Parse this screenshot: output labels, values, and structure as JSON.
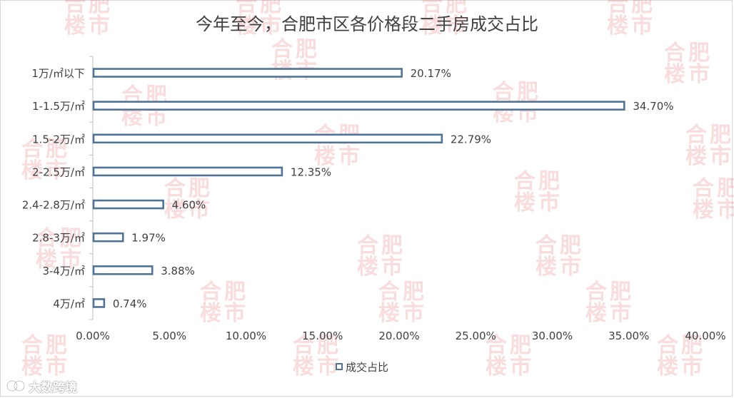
{
  "chart_data": {
    "type": "bar",
    "orientation": "horizontal",
    "title": "今年至今，合肥市区各价格段二手房成交占比",
    "categories": [
      "1万/㎡以下",
      "1-1.5万/㎡",
      "1.5-2万/㎡",
      "2-2.5万/㎡",
      "2.4-2.8万/㎡",
      "2.8-3万/㎡",
      "3-4万/㎡",
      "4万/㎡"
    ],
    "series": [
      {
        "name": "成交占比",
        "values": [
          20.17,
          34.7,
          22.79,
          12.35,
          4.6,
          1.97,
          3.88,
          0.74
        ]
      }
    ],
    "data_labels": [
      "20.17%",
      "34.70%",
      "22.79%",
      "12.35%",
      "4.60%",
      "1.97%",
      "3.88%",
      "0.74%"
    ],
    "xlim": [
      0,
      40
    ],
    "x_ticks": [
      0,
      5,
      10,
      15,
      20,
      25,
      30,
      35,
      40
    ],
    "x_tick_labels": [
      "0.00%",
      "5.00%",
      "10.00%",
      "15.00%",
      "20.00%",
      "25.00%",
      "30.00%",
      "35.00%",
      "40.00%"
    ],
    "grid": false,
    "legend_position": "bottom",
    "colors": {
      "bar_stroke": "#4f7495",
      "bar_fill": "#ffffff",
      "axis": "#bfbfbf",
      "text": "#404040"
    }
  },
  "watermark": {
    "line1": "合肥",
    "line2": "楼市"
  },
  "brand": {
    "text": "大数跨境",
    "icon": "brand-logo-icon"
  }
}
